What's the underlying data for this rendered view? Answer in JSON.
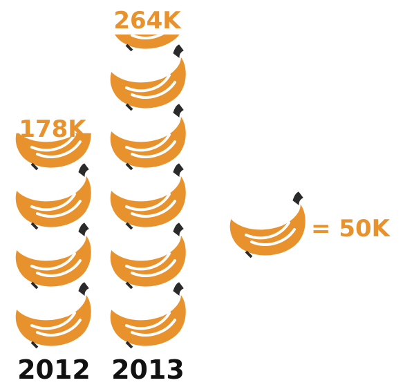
{
  "colors": {
    "banana": "#E8922E",
    "highlight": "#FFFFFF",
    "stem": "#2A2A2A",
    "text": "#111111"
  },
  "icon": "banana-bunch-icon",
  "chart_data": {
    "type": "pictograph",
    "unit_label": "= 50K",
    "unit_value": 50000,
    "categories": [
      "2012",
      "2013"
    ],
    "values": [
      178000,
      264000
    ],
    "value_labels": [
      "178K",
      "264K"
    ]
  }
}
